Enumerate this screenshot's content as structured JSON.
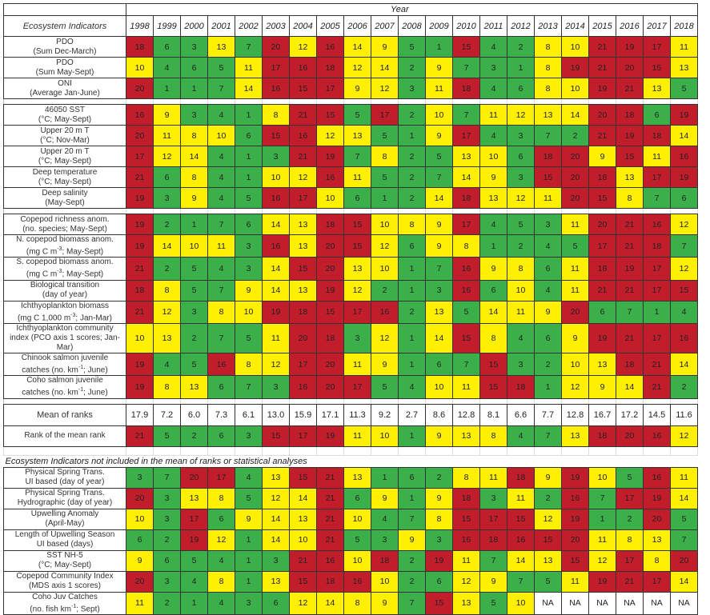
{
  "chart_data": {
    "type": "heatmap",
    "title": "Ecosystem Indicators",
    "x_title": "Year",
    "row_header": "Ecosystem Indicators",
    "years": [
      "1998",
      "1999",
      "2000",
      "2001",
      "2002",
      "2003",
      "2004",
      "2005",
      "2006",
      "2007",
      "2008",
      "2009",
      "2010",
      "2011",
      "2012",
      "2013",
      "2014",
      "2015",
      "2016",
      "2017",
      "2018"
    ],
    "color_scale": {
      "green": "#3bb04a",
      "yellow": "#ffef00",
      "red": "#c21d2b",
      "green_range": "1-7",
      "yellow_range": "8-14",
      "red_range": "15-21"
    },
    "groups": [
      {
        "rows": [
          {
            "line1": "PDO",
            "line2": "(Sum Dec-March)",
            "values": [
              18,
              6,
              3,
              13,
              7,
              20,
              12,
              16,
              14,
              9,
              5,
              1,
              15,
              4,
              2,
              8,
              10,
              21,
              19,
              17,
              11
            ]
          },
          {
            "line1": "PDO",
            "line2": "(Sum May-Sept)",
            "values": [
              10,
              4,
              6,
              5,
              11,
              17,
              16,
              18,
              12,
              14,
              2,
              9,
              7,
              3,
              1,
              8,
              19,
              21,
              20,
              15,
              13
            ]
          },
          {
            "line1": "ONI",
            "line2": "(Average Jan-June)",
            "values": [
              20,
              1,
              1,
              7,
              14,
              16,
              15,
              17,
              9,
              12,
              3,
              11,
              18,
              4,
              6,
              8,
              10,
              19,
              21,
              13,
              5
            ]
          }
        ]
      },
      {
        "rows": [
          {
            "line1": "46050 SST",
            "line2": "(°C; May-Sept)",
            "values": [
              16,
              9,
              3,
              4,
              1,
              8,
              21,
              15,
              5,
              17,
              2,
              10,
              7,
              11,
              12,
              13,
              14,
              20,
              18,
              6,
              19
            ]
          },
          {
            "line1": "Upper 20 m T",
            "line2": "(°C; Nov-Mar)",
            "values": [
              20,
              11,
              8,
              10,
              6,
              15,
              16,
              12,
              13,
              5,
              1,
              9,
              17,
              4,
              3,
              7,
              2,
              21,
              19,
              18,
              14
            ]
          },
          {
            "line1": "Upper 20 m T",
            "line2": "(°C; May-Sept)",
            "values": [
              17,
              12,
              14,
              4,
              1,
              3,
              21,
              19,
              7,
              8,
              2,
              5,
              13,
              10,
              6,
              18,
              20,
              9,
              15,
              11,
              16
            ]
          },
          {
            "line1": "Deep temperature",
            "line2": "(°C; May-Sept)",
            "values": [
              21,
              6,
              8,
              4,
              1,
              10,
              12,
              16,
              11,
              5,
              2,
              7,
              14,
              9,
              3,
              15,
              20,
              18,
              13,
              17,
              19
            ]
          },
          {
            "line1": "Deep salinity",
            "line2": "(May-Sept)",
            "values": [
              19,
              3,
              9,
              4,
              5,
              16,
              17,
              10,
              6,
              1,
              2,
              14,
              18,
              13,
              12,
              11,
              20,
              15,
              8,
              7,
              6
            ]
          }
        ]
      },
      {
        "rows": [
          {
            "line1": "Copepod richness anom.",
            "line2": "(no. species; May-Sept)",
            "values": [
              19,
              2,
              1,
              7,
              6,
              14,
              13,
              18,
              15,
              10,
              8,
              9,
              17,
              4,
              5,
              3,
              11,
              20,
              21,
              16,
              12
            ]
          },
          {
            "line1": "N. copepod biomass anom.",
            "line2": "(mg C m-3; May-Sept)",
            "values": [
              19,
              14,
              10,
              11,
              3,
              16,
              13,
              20,
              15,
              12,
              6,
              9,
              8,
              1,
              2,
              4,
              5,
              17,
              21,
              18,
              7
            ]
          },
          {
            "line1": "S. copepod biomass anom.",
            "line2": "(mg C m-3; May-Sept)",
            "values": [
              21,
              2,
              5,
              4,
              3,
              14,
              15,
              20,
              13,
              10,
              1,
              7,
              16,
              9,
              8,
              6,
              11,
              18,
              19,
              17,
              12
            ]
          },
          {
            "line1": "Biological transition",
            "line2": "(day of year)",
            "values": [
              18,
              8,
              5,
              7,
              9,
              14,
              13,
              19,
              12,
              2,
              1,
              3,
              16,
              6,
              10,
              4,
              11,
              21,
              21,
              17,
              15
            ]
          },
          {
            "line1": "Ichthyoplankton biomass",
            "line2": "(mg C 1,000 m-3; Jan-Mar)",
            "values": [
              21,
              12,
              3,
              8,
              10,
              19,
              18,
              15,
              17,
              16,
              2,
              13,
              5,
              14,
              11,
              9,
              20,
              6,
              7,
              1,
              4
            ]
          },
          {
            "line1": "Ichthyoplankton community",
            "line2": "index (PCO axis 1 scores; Jan-Mar)",
            "values": [
              10,
              13,
              2,
              7,
              5,
              11,
              20,
              18,
              3,
              12,
              1,
              14,
              15,
              8,
              4,
              6,
              9,
              19,
              21,
              17,
              16
            ]
          },
          {
            "line1": "Chinook salmon juvenile",
            "line2": "catches (no. km-1; June)",
            "values": [
              19,
              4,
              5,
              16,
              8,
              12,
              17,
              20,
              11,
              9,
              1,
              6,
              7,
              15,
              3,
              2,
              10,
              13,
              18,
              21,
              14
            ]
          },
          {
            "line1": "Coho salmon juvenile",
            "line2": "catches (no. km-1; June)",
            "values": [
              19,
              8,
              13,
              6,
              7,
              3,
              16,
              20,
              17,
              5,
              4,
              10,
              11,
              15,
              18,
              1,
              12,
              9,
              14,
              21,
              2
            ]
          }
        ]
      }
    ],
    "mean_of_ranks": {
      "label": "Mean of ranks",
      "values": [
        "17.9",
        "7.2",
        "6.0",
        "7.3",
        "6.1",
        "13.0",
        "15.9",
        "17.1",
        "11.3",
        "9.2",
        "2.7",
        "8.6",
        "12.8",
        "8.1",
        "6.6",
        "7.7",
        "12.8",
        "16.7",
        "17.2",
        "14.5",
        "11.6"
      ]
    },
    "rank_of_mean_rank": {
      "label": "Rank of the mean rank",
      "values": [
        21,
        5,
        2,
        6,
        3,
        15,
        17,
        19,
        11,
        10,
        1,
        9,
        13,
        8,
        4,
        7,
        13,
        18,
        20,
        16,
        12
      ]
    },
    "excluded_note": "Ecosystem Indicators not included in the mean of ranks or statistical analyses",
    "excluded_rows": [
      {
        "line1": "Physical Spring Trans.",
        "line2": "UI based (day of year)",
        "values": [
          3,
          7,
          20,
          17,
          4,
          13,
          15,
          21,
          13,
          1,
          6,
          2,
          8,
          11,
          18,
          9,
          19,
          10,
          5,
          16,
          11
        ]
      },
      {
        "line1": "Physical Spring Trans.",
        "line2": "Hydrographic (day of year)",
        "values": [
          20,
          3,
          13,
          8,
          5,
          12,
          14,
          21,
          6,
          9,
          1,
          9,
          18,
          3,
          11,
          2,
          16,
          7,
          17,
          19,
          14
        ]
      },
      {
        "line1": "Upwelling Anomaly",
        "line2": "(April-May)",
        "values": [
          10,
          3,
          17,
          6,
          9,
          14,
          13,
          21,
          10,
          4,
          7,
          8,
          15,
          17,
          15,
          12,
          19,
          1,
          2,
          20,
          5
        ]
      },
      {
        "line1": "Length of Upwelling Season",
        "line2": "UI based (days)",
        "values": [
          6,
          2,
          19,
          12,
          1,
          14,
          10,
          21,
          5,
          3,
          9,
          3,
          16,
          18,
          16,
          15,
          20,
          11,
          8,
          13,
          7
        ]
      },
      {
        "line1": "SST NH-5",
        "line2": "(°C; May-Sept)",
        "values": [
          9,
          6,
          5,
          4,
          1,
          3,
          21,
          16,
          10,
          18,
          2,
          19,
          11,
          7,
          14,
          13,
          15,
          12,
          17,
          8,
          20
        ]
      },
      {
        "line1": "Copepod Community Index",
        "line2": "(MDS axis 1 scores)",
        "values": [
          20,
          3,
          4,
          8,
          1,
          13,
          15,
          18,
          16,
          10,
          2,
          6,
          12,
          9,
          7,
          5,
          11,
          19,
          21,
          17,
          14
        ]
      },
      {
        "line1": "Coho Juv Catches",
        "line2": "(no. fish km-1; Sept)",
        "values": [
          11,
          2,
          1,
          4,
          3,
          6,
          12,
          14,
          8,
          9,
          7,
          15,
          13,
          5,
          10,
          "NA",
          "NA",
          "NA",
          "NA",
          "NA",
          "NA"
        ]
      }
    ]
  }
}
